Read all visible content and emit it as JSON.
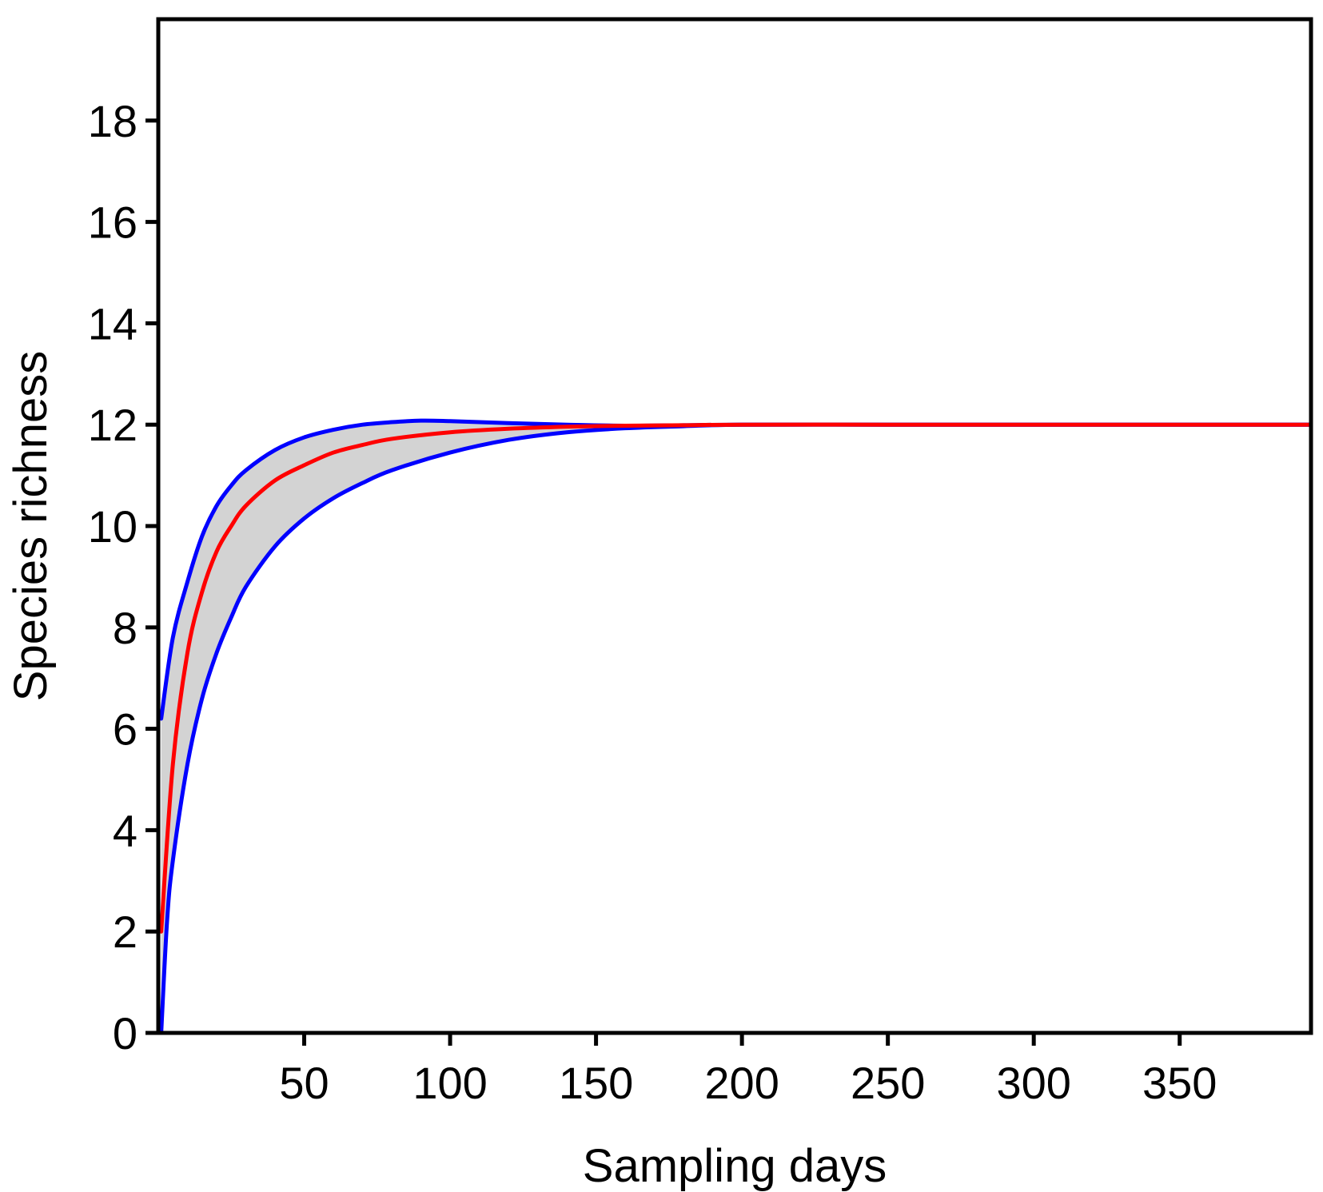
{
  "chart_data": {
    "type": "line",
    "xlabel": "Sampling days",
    "ylabel": "Species richness",
    "xlim": [
      0,
      395
    ],
    "ylim": [
      0,
      20
    ],
    "xticks": [
      50,
      100,
      150,
      200,
      250,
      300,
      350
    ],
    "yticks": [
      0,
      2,
      4,
      6,
      8,
      10,
      12,
      14,
      16,
      18
    ],
    "grid": false,
    "legend": "none",
    "series": [
      {
        "role": "mean",
        "color": "#ff0000",
        "x": [
          1,
          5,
          10,
          15,
          20,
          25,
          30,
          40,
          50,
          60,
          70,
          80,
          100,
          120,
          140,
          160,
          180,
          200,
          250,
          300,
          350,
          395
        ],
        "y": [
          2.0,
          5.3,
          7.5,
          8.7,
          9.5,
          10.0,
          10.4,
          10.9,
          11.2,
          11.45,
          11.6,
          11.72,
          11.85,
          11.92,
          11.96,
          11.98,
          11.99,
          12.0,
          12.0,
          12.0,
          12.0,
          12.0
        ]
      },
      {
        "role": "upper-bound",
        "color": "#0000ff",
        "x": [
          1,
          5,
          10,
          15,
          20,
          25,
          30,
          40,
          50,
          60,
          70,
          80,
          90,
          100,
          120,
          140,
          160,
          180,
          200,
          250,
          300,
          350,
          395
        ],
        "y": [
          6.2,
          7.8,
          8.9,
          9.8,
          10.4,
          10.8,
          11.1,
          11.5,
          11.75,
          11.9,
          12.0,
          12.05,
          12.08,
          12.07,
          12.03,
          12.0,
          11.98,
          11.99,
          12.0,
          12.0,
          12.0,
          12.0,
          12.0
        ]
      },
      {
        "role": "lower-bound",
        "color": "#0000ff",
        "x": [
          1,
          3,
          5,
          10,
          15,
          20,
          25,
          30,
          40,
          50,
          60,
          70,
          80,
          100,
          120,
          140,
          160,
          180,
          200,
          250,
          300,
          350,
          395
        ],
        "y": [
          0.0,
          2.2,
          3.4,
          5.3,
          6.6,
          7.5,
          8.2,
          8.8,
          9.6,
          10.15,
          10.55,
          10.85,
          11.1,
          11.45,
          11.7,
          11.85,
          11.93,
          11.97,
          12.0,
          12.0,
          12.0,
          12.0,
          12.0
        ]
      }
    ],
    "band_color": "#d3d3d3"
  }
}
